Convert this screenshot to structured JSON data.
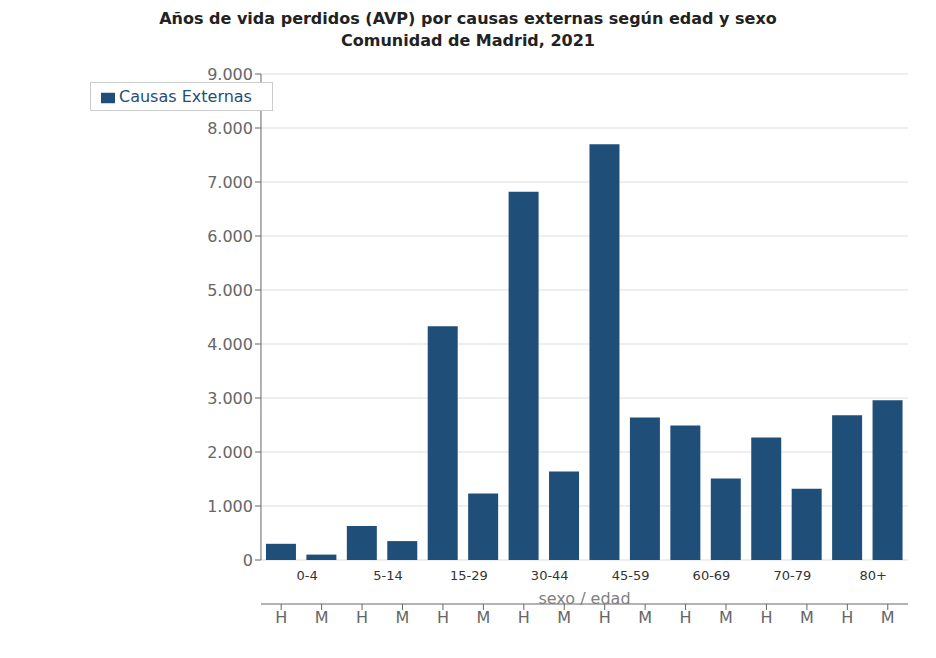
{
  "chart_data": {
    "type": "bar",
    "title": "Años de vida perdidos (AVP) por causas externas según edad y sexo",
    "subtitle": "Comunidad de Madrid, 2021",
    "categories": [
      "H",
      "M",
      "H",
      "M",
      "H",
      "M",
      "H",
      "M",
      "H",
      "M",
      "H",
      "M",
      "H",
      "M",
      "H",
      "M"
    ],
    "groups": [
      "0-4",
      "5-14",
      "15-29",
      "30-44",
      "45-59",
      "60-69",
      "70-79",
      "80+"
    ],
    "series": [
      {
        "name": "Causas Externas",
        "color": "#1F4E79",
        "values": [
          300,
          100,
          630,
          350,
          4330,
          1230,
          6820,
          1640,
          7700,
          2640,
          2490,
          1510,
          2270,
          1320,
          2680,
          2960
        ]
      }
    ],
    "xlabel": "sexo / edad",
    "ylim": [
      0,
      9000
    ],
    "yticks": [
      0,
      {
        "value": 1000,
        "label": "1.000"
      },
      {
        "value": 2000,
        "label": "2.000"
      },
      {
        "value": 3000,
        "label": "3.000"
      },
      {
        "value": 4000,
        "label": "4.000"
      },
      {
        "value": 5000,
        "label": "5.000"
      },
      {
        "value": 6000,
        "label": "6.000"
      },
      {
        "value": 7000,
        "label": "7.000"
      },
      {
        "value": 8000,
        "label": "8.000"
      },
      {
        "value": 9000,
        "label": "9.000"
      }
    ],
    "grid": true,
    "legend": "top-left"
  }
}
